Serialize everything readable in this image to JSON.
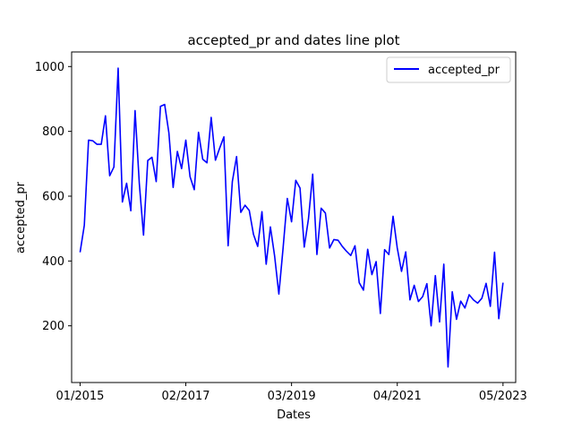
{
  "chart_data": {
    "type": "line",
    "title": "accepted_pr and dates line plot",
    "xlabel": "Dates",
    "ylabel": "accepted_pr",
    "x_ticks": [
      "01/2015",
      "02/2017",
      "03/2019",
      "04/2021",
      "05/2023"
    ],
    "y_ticks": [
      200,
      400,
      600,
      800,
      1000
    ],
    "xlim": [
      "2014-11",
      "2023-08"
    ],
    "ylim": [
      25,
      1045
    ],
    "grid": false,
    "legend_position": "top-right",
    "series_color": "#0000ff",
    "series": [
      {
        "name": "accepted_pr",
        "x": [
          "2015-01",
          "2015-02",
          "2015-03",
          "2015-04",
          "2015-05",
          "2015-06",
          "2015-07",
          "2015-08",
          "2015-09",
          "2015-10",
          "2015-11",
          "2015-12",
          "2016-01",
          "2016-02",
          "2016-03",
          "2016-04",
          "2016-05",
          "2016-06",
          "2016-07",
          "2016-08",
          "2016-09",
          "2016-10",
          "2016-11",
          "2016-12",
          "2017-01",
          "2017-02",
          "2017-03",
          "2017-04",
          "2017-05",
          "2017-06",
          "2017-07",
          "2017-08",
          "2017-09",
          "2017-10",
          "2017-11",
          "2017-12",
          "2018-01",
          "2018-02",
          "2018-03",
          "2018-04",
          "2018-05",
          "2018-06",
          "2018-07",
          "2018-08",
          "2018-09",
          "2018-10",
          "2018-11",
          "2018-12",
          "2019-01",
          "2019-02",
          "2019-03",
          "2019-04",
          "2019-05",
          "2019-06",
          "2019-07",
          "2019-08",
          "2019-09",
          "2019-10",
          "2019-11",
          "2019-12",
          "2020-01",
          "2020-02",
          "2020-03",
          "2020-04",
          "2020-05",
          "2020-06",
          "2020-07",
          "2020-08",
          "2020-09",
          "2020-10",
          "2020-11",
          "2020-12",
          "2021-01",
          "2021-02",
          "2021-03",
          "2021-04",
          "2021-05",
          "2021-06",
          "2021-07",
          "2021-08",
          "2021-09",
          "2021-10",
          "2021-11",
          "2021-12",
          "2022-01",
          "2022-02",
          "2022-03",
          "2022-04",
          "2022-05",
          "2022-06",
          "2022-07",
          "2022-08",
          "2022-09",
          "2022-10",
          "2022-11",
          "2022-12",
          "2023-01",
          "2023-02",
          "2023-03",
          "2023-04",
          "2023-05"
        ],
        "values": [
          427,
          510,
          773,
          771,
          760,
          760,
          848,
          663,
          690,
          995,
          582,
          640,
          555,
          864,
          640,
          480,
          710,
          720,
          645,
          877,
          883,
          795,
          627,
          738,
          685,
          773,
          660,
          620,
          797,
          714,
          703,
          843,
          711,
          748,
          783,
          447,
          645,
          722,
          550,
          572,
          556,
          482,
          445,
          552,
          390,
          505,
          415,
          298,
          440,
          593,
          521,
          649,
          625,
          443,
          530,
          668,
          420,
          563,
          548,
          440,
          466,
          464,
          445,
          430,
          417,
          447,
          333,
          310,
          436,
          358,
          398,
          238,
          435,
          420,
          538,
          440,
          368,
          428,
          280,
          325,
          275,
          290,
          330,
          200,
          355,
          212,
          390,
          73,
          305,
          220,
          276,
          255,
          296,
          280,
          270,
          285,
          331,
          260,
          427,
          222,
          333
        ]
      }
    ]
  }
}
